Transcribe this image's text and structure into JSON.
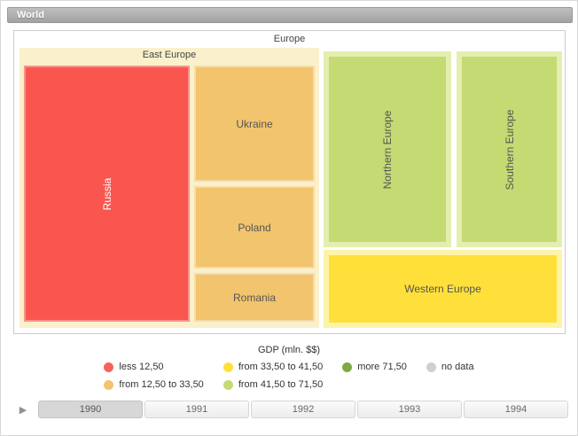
{
  "window": {
    "breadcrumb": "World"
  },
  "treemap": {
    "region": "Europe",
    "groups": {
      "east_europe": {
        "label": "East Europe",
        "bg": "#faf0cb",
        "children": {
          "russia": {
            "label": "Russia",
            "color": "#f8564f"
          },
          "ukraine": {
            "label": "Ukraine",
            "color": "#f2c46d"
          },
          "poland": {
            "label": "Poland",
            "color": "#f2c46d"
          },
          "romania": {
            "label": "Romania",
            "color": "#f2c46d"
          }
        }
      },
      "northern_europe": {
        "label": "Northern Europe",
        "color": "#c4da73",
        "bg": "#e4eeaf"
      },
      "southern_europe": {
        "label": "Southern Europe",
        "color": "#c4da73",
        "bg": "#e4eeaf"
      },
      "western_europe": {
        "label": "Western Europe",
        "color": "#ffe03a",
        "bg": "#fdf3a9"
      }
    }
  },
  "legend": {
    "title": "GDP (mln. $$)",
    "items": [
      {
        "label": "less 12,50",
        "color": "#f8625c"
      },
      {
        "label": "from 12,50 to 33,50",
        "color": "#f2c46d"
      },
      {
        "label": "from 33,50 to 41,50",
        "color": "#ffe03a"
      },
      {
        "label": "from 41,50 to 71,50",
        "color": "#c4da73"
      },
      {
        "label": "more 71,50",
        "color": "#7fa943"
      },
      {
        "label": "no data",
        "color": "#cfcfcf"
      }
    ]
  },
  "timeline": {
    "play_icon": "▶",
    "selected_year": "1990",
    "years": [
      {
        "label": "1990"
      },
      {
        "label": "1991"
      },
      {
        "label": "1992"
      },
      {
        "label": "1993"
      },
      {
        "label": "1994"
      }
    ]
  },
  "chart_data": {
    "type": "treemap",
    "title": "World",
    "level_shown": "Europe",
    "legend_title": "GDP (mln. $$)",
    "year_shown": "1990",
    "years": [
      "1990",
      "1991",
      "1992",
      "1993",
      "1994"
    ],
    "bins": [
      "less 12,50",
      "from 12,50 to 33,50",
      "from 33,50 to 41,50",
      "from 41,50 to 71,50",
      "more 71,50",
      "no data"
    ],
    "nodes": [
      {
        "parent": "East Europe",
        "name": "Russia",
        "bin": "less 12,50"
      },
      {
        "parent": "East Europe",
        "name": "Ukraine",
        "bin": "from 12,50 to 33,50"
      },
      {
        "parent": "East Europe",
        "name": "Poland",
        "bin": "from 12,50 to 33,50"
      },
      {
        "parent": "East Europe",
        "name": "Romania",
        "bin": "from 12,50 to 33,50"
      },
      {
        "parent": "Europe",
        "name": "Northern Europe",
        "bin": "from 41,50 to 71,50"
      },
      {
        "parent": "Europe",
        "name": "Southern Europe",
        "bin": "from 41,50 to 71,50"
      },
      {
        "parent": "Europe",
        "name": "Western Europe",
        "bin": "from 33,50 to 41,50"
      }
    ]
  }
}
